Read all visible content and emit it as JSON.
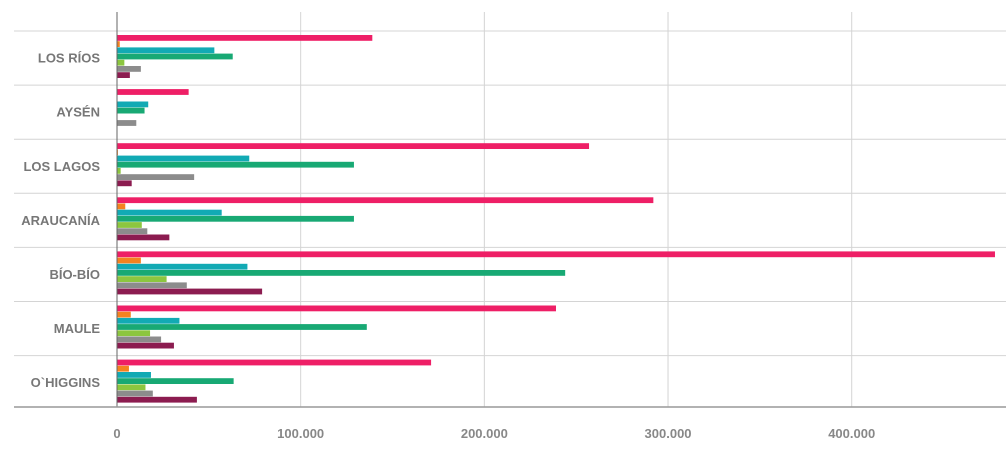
{
  "chart_data": {
    "type": "bar",
    "orientation": "horizontal",
    "categories": [
      "LOS RÍOS",
      "AYSÉN",
      "LOS LAGOS",
      "ARAUCANÍA",
      "BÍO-BÍO",
      "MAULE",
      "O`HIGGINS"
    ],
    "series": [
      {
        "color": "#ee1f66",
        "values": [
          139000,
          39000,
          257000,
          292000,
          478000,
          239000,
          171000
        ]
      },
      {
        "color": "#f5821f",
        "values": [
          1500,
          0,
          500,
          4500,
          13000,
          7500,
          6500
        ]
      },
      {
        "color": "#12aab4",
        "values": [
          53000,
          17000,
          72000,
          57000,
          71000,
          34000,
          18500
        ]
      },
      {
        "color": "#18a974",
        "values": [
          63000,
          15000,
          129000,
          129000,
          244000,
          136000,
          63500
        ]
      },
      {
        "color": "#8cc63f",
        "values": [
          4000,
          0,
          2000,
          13500,
          27000,
          18000,
          15500
        ]
      },
      {
        "color": "#8c8c8c",
        "values": [
          13000,
          10500,
          42000,
          16500,
          38000,
          24000,
          19500
        ]
      },
      {
        "color": "#8c1c50",
        "values": [
          7000,
          0,
          8000,
          28500,
          79000,
          31000,
          43500
        ]
      }
    ],
    "xlim": [
      0,
      484000
    ],
    "x_ticks": [
      0,
      100000,
      200000,
      300000,
      400000
    ],
    "x_tick_labels": [
      "0",
      "100.000",
      "200.000",
      "300.000",
      "400.000"
    ],
    "grid": true,
    "legend": "none",
    "title": "",
    "xlabel": "",
    "ylabel": ""
  }
}
